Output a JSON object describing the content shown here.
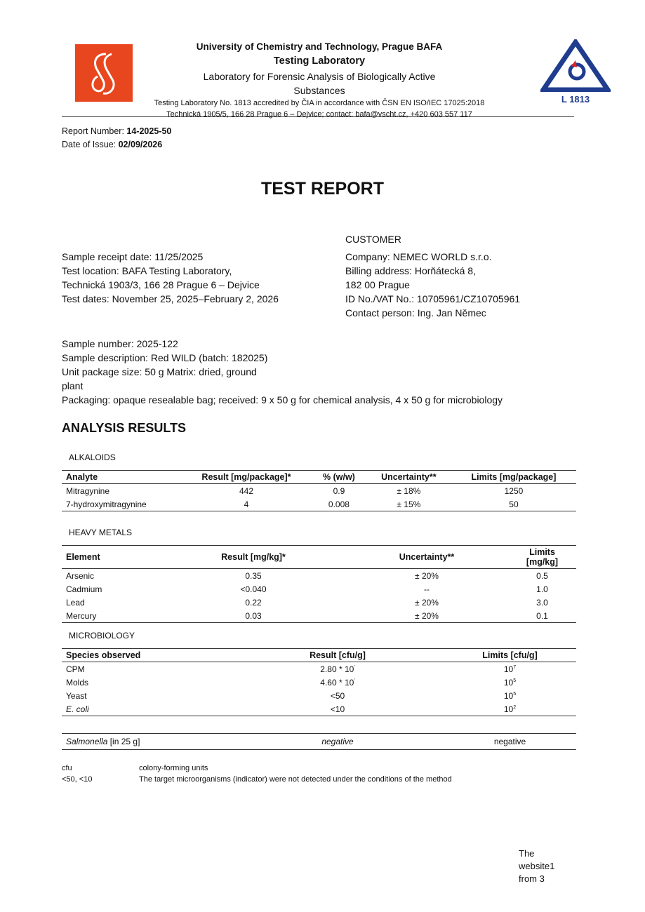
{
  "header": {
    "university": "University of Chemistry and Technology, Prague BAFA",
    "lab": "Testing Laboratory",
    "lab_full": "Laboratory for Forensic Analysis of Biologically Active Substances",
    "accreditation": "Testing Laboratory No. 1813 accredited by ČIA in accordance with ČSN EN ISO/IEC 17025:2018 Technická 1905/5, 166 28 Prague 6 – Dejvice; contact: bafa@vscht.cz, +420 603 557 117",
    "badge_text": "L 1813",
    "logo_color": "#e8461e",
    "badge_color": "#1f3c8f"
  },
  "report": {
    "number_label": "Report Number: ",
    "number": "14-2025-50",
    "date_label": "Date of Issue: ",
    "date": "02/09/2026",
    "title": "TEST REPORT"
  },
  "sample": {
    "receipt": "Sample receipt date: 11/25/2025",
    "location": "Test location: BAFA Testing Laboratory,",
    "address": "Technická 1903/3, 166 28 Prague 6 – Dejvice",
    "dates": "Test dates: November 25, 2025–February 2, 2026"
  },
  "customer": {
    "heading": "CUSTOMER",
    "company": "Company: NEMEC WORLD s.r.o.",
    "billing": "Billing address: Horňátecká 8,",
    "city": "182 00 Prague",
    "id": "ID No./VAT No.: 10705961/CZ10705961",
    "contact": "Contact person: Ing. Jan Němec"
  },
  "details": {
    "number": "Sample number: 2025-122",
    "description": "Sample description: Red WILD (batch: 182025)",
    "package": "Unit package size: 50 g Matrix: dried, ground",
    "package2": "plant",
    "packaging": "Packaging: opaque resealable bag; received: 9 x 50 g for chemical analysis, 4 x 50 g for microbiology"
  },
  "results_heading": "ANALYSIS RESULTS",
  "alkaloids": {
    "heading": "ALKALOIDS",
    "columns": [
      "Analyte",
      "Result [mg/package]*",
      "% (w/w)",
      "Uncertainty**",
      "Limits [mg/package]"
    ],
    "rows": [
      [
        "Mitragynine",
        "442",
        "0.9",
        "± 18%",
        "1250"
      ],
      [
        "7-hydroxymitragynine",
        "4",
        "0.008",
        "± 15%",
        "50"
      ]
    ]
  },
  "metals": {
    "heading": "HEAVY METALS",
    "columns": [
      "Element",
      "Result [mg/kg]*",
      "Uncertainty**",
      "Limits [mg/kg]"
    ],
    "rows": [
      [
        "Arsenic",
        "0.35",
        "± 20%",
        "0.5"
      ],
      [
        "Cadmium",
        "<0.040",
        "--",
        "1.0"
      ],
      [
        "Lead",
        "0.22",
        "± 20%",
        "3.0"
      ],
      [
        "Mercury",
        "0.03",
        "± 20%",
        "0.1"
      ]
    ]
  },
  "micro": {
    "heading": "MICROBIOLOGY",
    "columns": [
      "Species observed",
      "Result [cfu/g]",
      "Limits [cfu/g]"
    ],
    "rows": [
      {
        "species": "CPM",
        "result": "2.80 * 10",
        "result_exp": "'",
        "limit": "10",
        "limit_exp": "7"
      },
      {
        "species": "Molds",
        "result": "4.60 * 10",
        "result_exp": "'",
        "limit": "10",
        "limit_exp": "5"
      },
      {
        "species": "Yeast",
        "result": "<50",
        "result_exp": "",
        "limit": "10",
        "limit_exp": "5"
      },
      {
        "species": "E. coli",
        "result": "<10",
        "result_exp": "",
        "limit": "10",
        "limit_exp": "2"
      }
    ],
    "salmonella": {
      "label": "Salmonella",
      "suffix": " [in 25 g]",
      "result": "negative",
      "limit": "negative"
    }
  },
  "notes": [
    {
      "term": "cfu",
      "def": "colony-forming units"
    },
    {
      "term": "<50, <10",
      "def": "The target microorganisms (indicator) were not detected under the conditions of the method"
    }
  ],
  "footer": {
    "line1": "The",
    "line2": "website1",
    "line3": "from 3"
  }
}
